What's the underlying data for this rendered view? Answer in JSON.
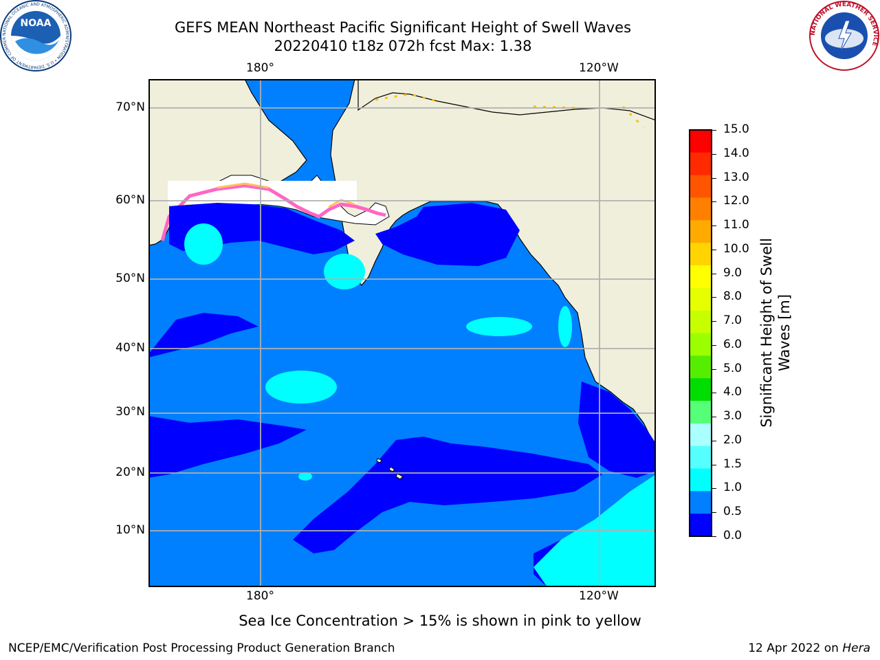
{
  "header": {
    "title_line1": "GEFS MEAN Northeast Pacific Significant Height of Swell Waves",
    "title_line2": "20220410 t18z 072h fcst   Max: 1.38"
  },
  "logos": {
    "left": {
      "name": "noaa-logo",
      "inner_text": "NOAA",
      "ring_text": "NATIONAL OCEANIC AND ATMOSPHERIC ADMINISTRATION • U.S. DEPARTMENT OF COMMERCE"
    },
    "right": {
      "name": "nws-logo",
      "ring_text": "NATIONAL WEATHER SERVICE"
    }
  },
  "map": {
    "lon_labels_top": [
      "180°",
      "120°W"
    ],
    "lon_labels_bottom": [
      "180°",
      "120°W"
    ],
    "lat_labels": [
      "70°N",
      "60°N",
      "50°N",
      "40°N",
      "30°N",
      "20°N",
      "10°N"
    ],
    "colors": {
      "land": "#efefdc",
      "ice_free": "#ffffff",
      "ocean_05_10": "#0080ff",
      "ocean_00_05": "#0000ff",
      "ocean_10_15": "#00ffff",
      "grid": "#b0b0b0"
    }
  },
  "colorbar": {
    "label_line1": "Significant Height of Swell",
    "label_line2": "Waves [m]",
    "ticks": [
      "15.0",
      "14.0",
      "13.0",
      "12.0",
      "11.0",
      "10.0",
      "9.0",
      "8.0",
      "7.0",
      "6.0",
      "5.0",
      "4.0",
      "3.0",
      "2.0",
      "1.5",
      "1.0",
      "0.5",
      "0.0"
    ],
    "colors_top_to_bottom": [
      "#ff0000",
      "#ff2a00",
      "#ff5500",
      "#ff8000",
      "#ffaa00",
      "#ffd400",
      "#ffff00",
      "#e6ff00",
      "#c8ff00",
      "#9cff00",
      "#55ee00",
      "#00dd00",
      "#55ff77",
      "#aaffff",
      "#55ffff",
      "#00ffff",
      "#0080ff",
      "#0000ff"
    ]
  },
  "footer": {
    "note": "Sea Ice Concentration > 15% is shown in pink to yellow",
    "left": "NCEP/EMC/Verification Post Processing Product Generation Branch",
    "right_date": "12 Apr 2022 on ",
    "right_host": "Hera"
  }
}
